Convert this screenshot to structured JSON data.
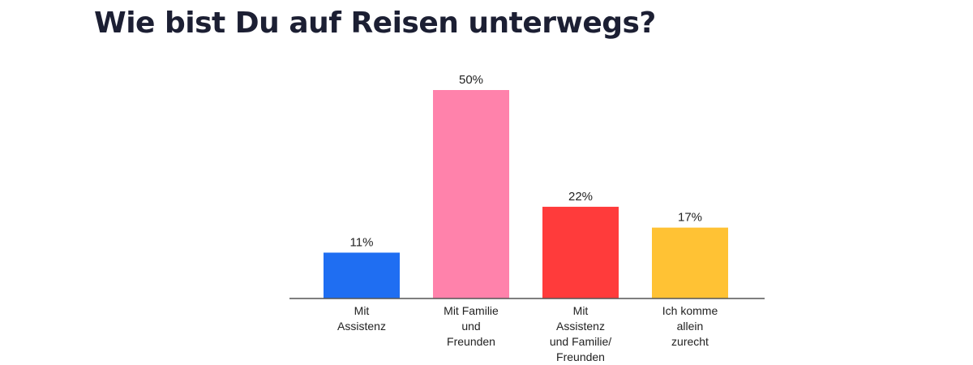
{
  "title": "Wie bist Du auf Reisen unterwegs?",
  "chart_data": {
    "type": "bar",
    "title": "Wie bist Du auf Reisen unterwegs?",
    "categories": [
      [
        "Mit",
        "Assistenz"
      ],
      [
        "Mit Familie",
        "und",
        "Freunden"
      ],
      [
        "Mit",
        "Assistenz",
        "und Familie/",
        "Freunden"
      ],
      [
        "Ich komme",
        "allein",
        "zurecht"
      ]
    ],
    "values": [
      11,
      50,
      22,
      17
    ],
    "value_labels": [
      "11%",
      "50%",
      "22%",
      "17%"
    ],
    "colors": [
      "#1f6ef2",
      "#ff82ab",
      "#ff3b3b",
      "#ffc234"
    ],
    "ylim": [
      0,
      50
    ],
    "unit": "%",
    "grid": false,
    "legend": "none"
  }
}
